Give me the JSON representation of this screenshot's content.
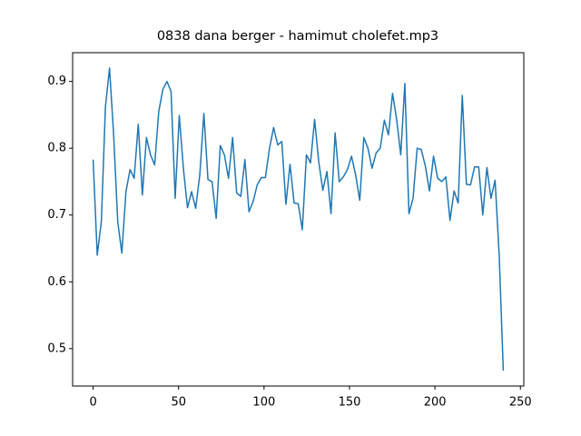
{
  "chart_data": {
    "type": "line",
    "title": "0838 dana berger - hamimut cholefet.mp3",
    "x": [
      0,
      2.4,
      4.8,
      7.2,
      9.6,
      12,
      14.4,
      16.8,
      19.2,
      21.6,
      24,
      26.4,
      28.8,
      31.2,
      33.6,
      36,
      38.4,
      40.8,
      43.2,
      45.6,
      48,
      50.4,
      52.8,
      55.2,
      57.6,
      60,
      62.4,
      64.8,
      67.2,
      69.6,
      72,
      74.4,
      76.8,
      79.2,
      81.6,
      84,
      86.4,
      88.8,
      91.2,
      93.6,
      96,
      98.4,
      100.8,
      103.2,
      105.6,
      108,
      110.4,
      112.8,
      115.2,
      117.6,
      120,
      122.4,
      124.8,
      127.2,
      129.6,
      132,
      134.4,
      136.8,
      139.2,
      141.6,
      144,
      146.4,
      148.8,
      151.2,
      153.6,
      156,
      158.4,
      160.8,
      163.2,
      165.6,
      168,
      170.4,
      172.8,
      175.2,
      177.6,
      180,
      182.4,
      184.8,
      187.2,
      189.6,
      192,
      194.4,
      196.8,
      199.2,
      201.6,
      204,
      206.4,
      208.8,
      211.2,
      213.6,
      216,
      218.4,
      220.8,
      223.2,
      225.6,
      228,
      230.4,
      232.8,
      235.2,
      237.6,
      240
    ],
    "series": [
      {
        "color": "#1f77b4",
        "values": [
          0.783,
          0.64,
          0.69,
          0.862,
          0.92,
          0.82,
          0.69,
          0.643,
          0.735,
          0.768,
          0.755,
          0.836,
          0.73,
          0.816,
          0.79,
          0.775,
          0.855,
          0.888,
          0.9,
          0.885,
          0.725,
          0.849,
          0.77,
          0.711,
          0.735,
          0.71,
          0.76,
          0.852,
          0.753,
          0.75,
          0.695,
          0.804,
          0.79,
          0.755,
          0.816,
          0.733,
          0.728,
          0.783,
          0.705,
          0.72,
          0.745,
          0.756,
          0.756,
          0.8,
          0.831,
          0.805,
          0.81,
          0.716,
          0.776,
          0.718,
          0.717,
          0.678,
          0.79,
          0.778,
          0.843,
          0.78,
          0.737,
          0.765,
          0.702,
          0.823,
          0.75,
          0.757,
          0.768,
          0.788,
          0.76,
          0.722,
          0.816,
          0.8,
          0.77,
          0.793,
          0.8,
          0.842,
          0.82,
          0.882,
          0.843,
          0.79,
          0.897,
          0.702,
          0.725,
          0.8,
          0.798,
          0.773,
          0.736,
          0.788,
          0.755,
          0.75,
          0.757,
          0.692,
          0.736,
          0.718,
          0.879,
          0.746,
          0.745,
          0.772,
          0.772,
          0.7,
          0.771,
          0.725,
          0.752,
          0.64,
          0.467
        ]
      }
    ],
    "xlim": [
      -12,
      252
    ],
    "xticks": [
      0,
      50,
      100,
      150,
      200,
      250
    ],
    "ylim": [
      0.444,
      0.943
    ],
    "yticks": [
      0.5,
      0.6,
      0.7,
      0.8,
      0.9
    ],
    "grid": false
  }
}
